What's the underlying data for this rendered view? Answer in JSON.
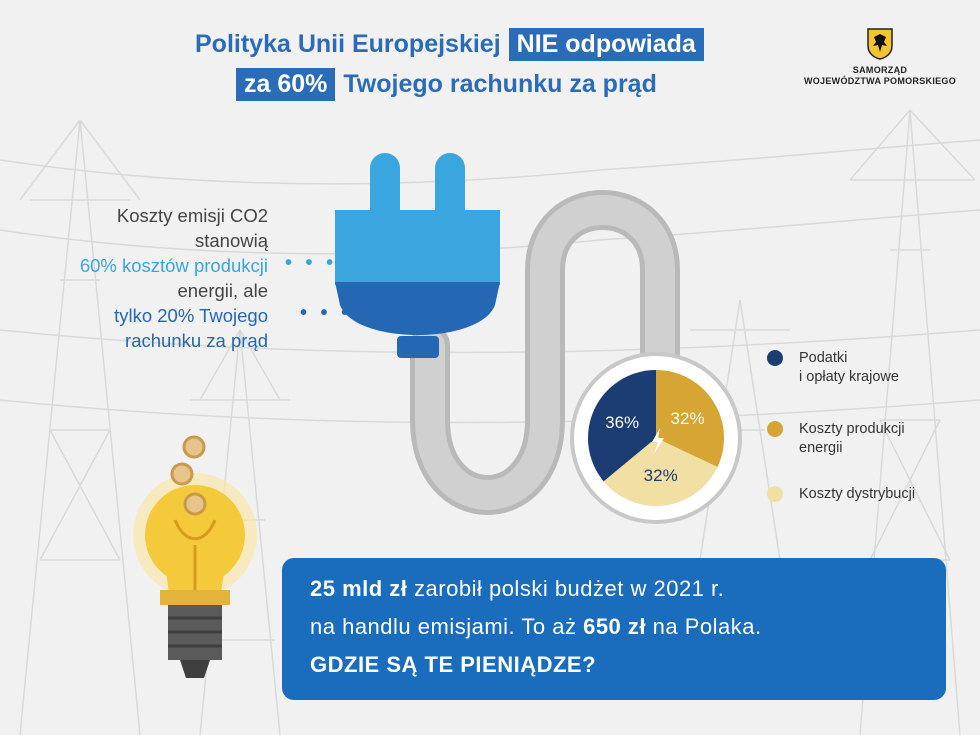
{
  "title": {
    "line1_part1": "Polityka Unii Europejskiej",
    "line1_highlight": "NIE odpowiada",
    "line2_highlight": "za 60%",
    "line2_part2": "Twojego rachunku za prąd"
  },
  "logo": {
    "line1": "SAMORZĄD",
    "line2": "WOJEWÓDZTWA POMORSKIEGO"
  },
  "callout": {
    "line1": "Koszty emisji CO2",
    "line2": "stanowią",
    "line3": "60% kosztów produkcji",
    "line4": "energii, ale",
    "line5": "tylko 20% Twojego",
    "line6": "rachunku za prąd"
  },
  "chart_data": {
    "type": "pie",
    "slices": [
      {
        "label": "Podatki i opłaty krajowe",
        "value": 36,
        "display": "36%",
        "color": "#1b3d73"
      },
      {
        "label": "Koszty produkcji energii",
        "value": 32,
        "display": "32%",
        "color": "#d6a534"
      },
      {
        "label": "Koszty dystrybucji",
        "value": 32,
        "display": "32%",
        "color": "#f1dfa3"
      }
    ]
  },
  "legend": {
    "item1_line1": "Podatki",
    "item1_line2": "i opłaty krajowe",
    "item2_line1": "Koszty produkcji",
    "item2_line2": "energii",
    "item3_line1": "Koszty dystrybucji"
  },
  "infobox": {
    "l1_bold": "25 mld zł",
    "l1_rest": " zarobił polski budżet w 2021 r.",
    "l2_a": "na handlu emisjami. To aż ",
    "l2_bold": "650 zł",
    "l2_b": " na Polaka.",
    "l3_bold": "GDZIE SĄ TE PIENIĄDZE?"
  },
  "colors": {
    "accent_blue": "#2a6cb8",
    "plug_light": "#3aa6e0",
    "plug_dark": "#2468b4",
    "infobox_bg": "#1a6dbd",
    "bulb_yellow": "#f4c93a"
  }
}
